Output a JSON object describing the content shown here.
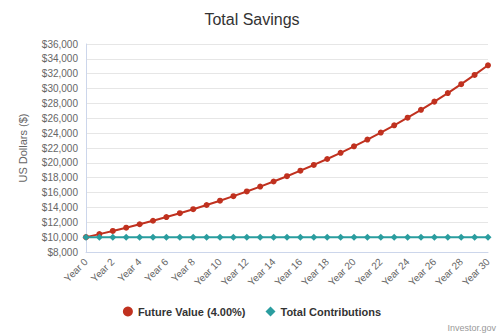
{
  "chart_data": {
    "type": "line",
    "title": "Total Savings",
    "y_label": "US Dollars ($)",
    "annotations": [
      "Investor.gov"
    ],
    "categories": [
      "Year 0",
      null,
      "Year 2",
      null,
      "Year 4",
      null,
      "Year 6",
      null,
      "Year 8",
      null,
      "Year 10",
      null,
      "Year 12",
      null,
      "Year 14",
      null,
      "Year 16",
      null,
      "Year 18",
      null,
      "Year 20",
      null,
      "Year 22",
      null,
      "Year 24",
      null,
      "Year 26",
      null,
      "Year 28",
      null,
      "Year 30"
    ],
    "series": [
      {
        "name": "Future Value (4.00%)",
        "color": "#c0311f",
        "marker": "circle",
        "values": [
          10000,
          10407,
          10831,
          11273,
          11732,
          12210,
          12707,
          13225,
          13764,
          14325,
          14908,
          15516,
          16148,
          16806,
          17491,
          18203,
          18945,
          19717,
          20520,
          21356,
          22226,
          23132,
          24074,
          25055,
          26076,
          27138,
          28244,
          29394,
          30592,
          31838,
          33135
        ]
      },
      {
        "name": "Total Contributions",
        "color": "#2a9d9f",
        "marker": "diamond",
        "values": [
          10000,
          10000,
          10000,
          10000,
          10000,
          10000,
          10000,
          10000,
          10000,
          10000,
          10000,
          10000,
          10000,
          10000,
          10000,
          10000,
          10000,
          10000,
          10000,
          10000,
          10000,
          10000,
          10000,
          10000,
          10000,
          10000,
          10000,
          10000,
          10000,
          10000,
          10000
        ]
      }
    ],
    "ylim": [
      8000,
      36000
    ],
    "yticks": [
      {
        "value": 8000,
        "label": "$8,000"
      },
      {
        "value": 10000,
        "label": "$10,000"
      },
      {
        "value": 12000,
        "label": "$12,000"
      },
      {
        "value": 14000,
        "label": "$14,000"
      },
      {
        "value": 16000,
        "label": "$16,000"
      },
      {
        "value": 18000,
        "label": "$18,000"
      },
      {
        "value": 20000,
        "label": "$20,000"
      },
      {
        "value": 22000,
        "label": "$22,000"
      },
      {
        "value": 24000,
        "label": "$24,000"
      },
      {
        "value": 26000,
        "label": "$26,000"
      },
      {
        "value": 28000,
        "label": "$28,000"
      },
      {
        "value": 30000,
        "label": "$30,000"
      },
      {
        "value": 32000,
        "label": "$32,000"
      },
      {
        "value": 34000,
        "label": "$34,000"
      },
      {
        "value": 36000,
        "label": "$36,000"
      }
    ],
    "grid": true,
    "legend": "bottom"
  }
}
